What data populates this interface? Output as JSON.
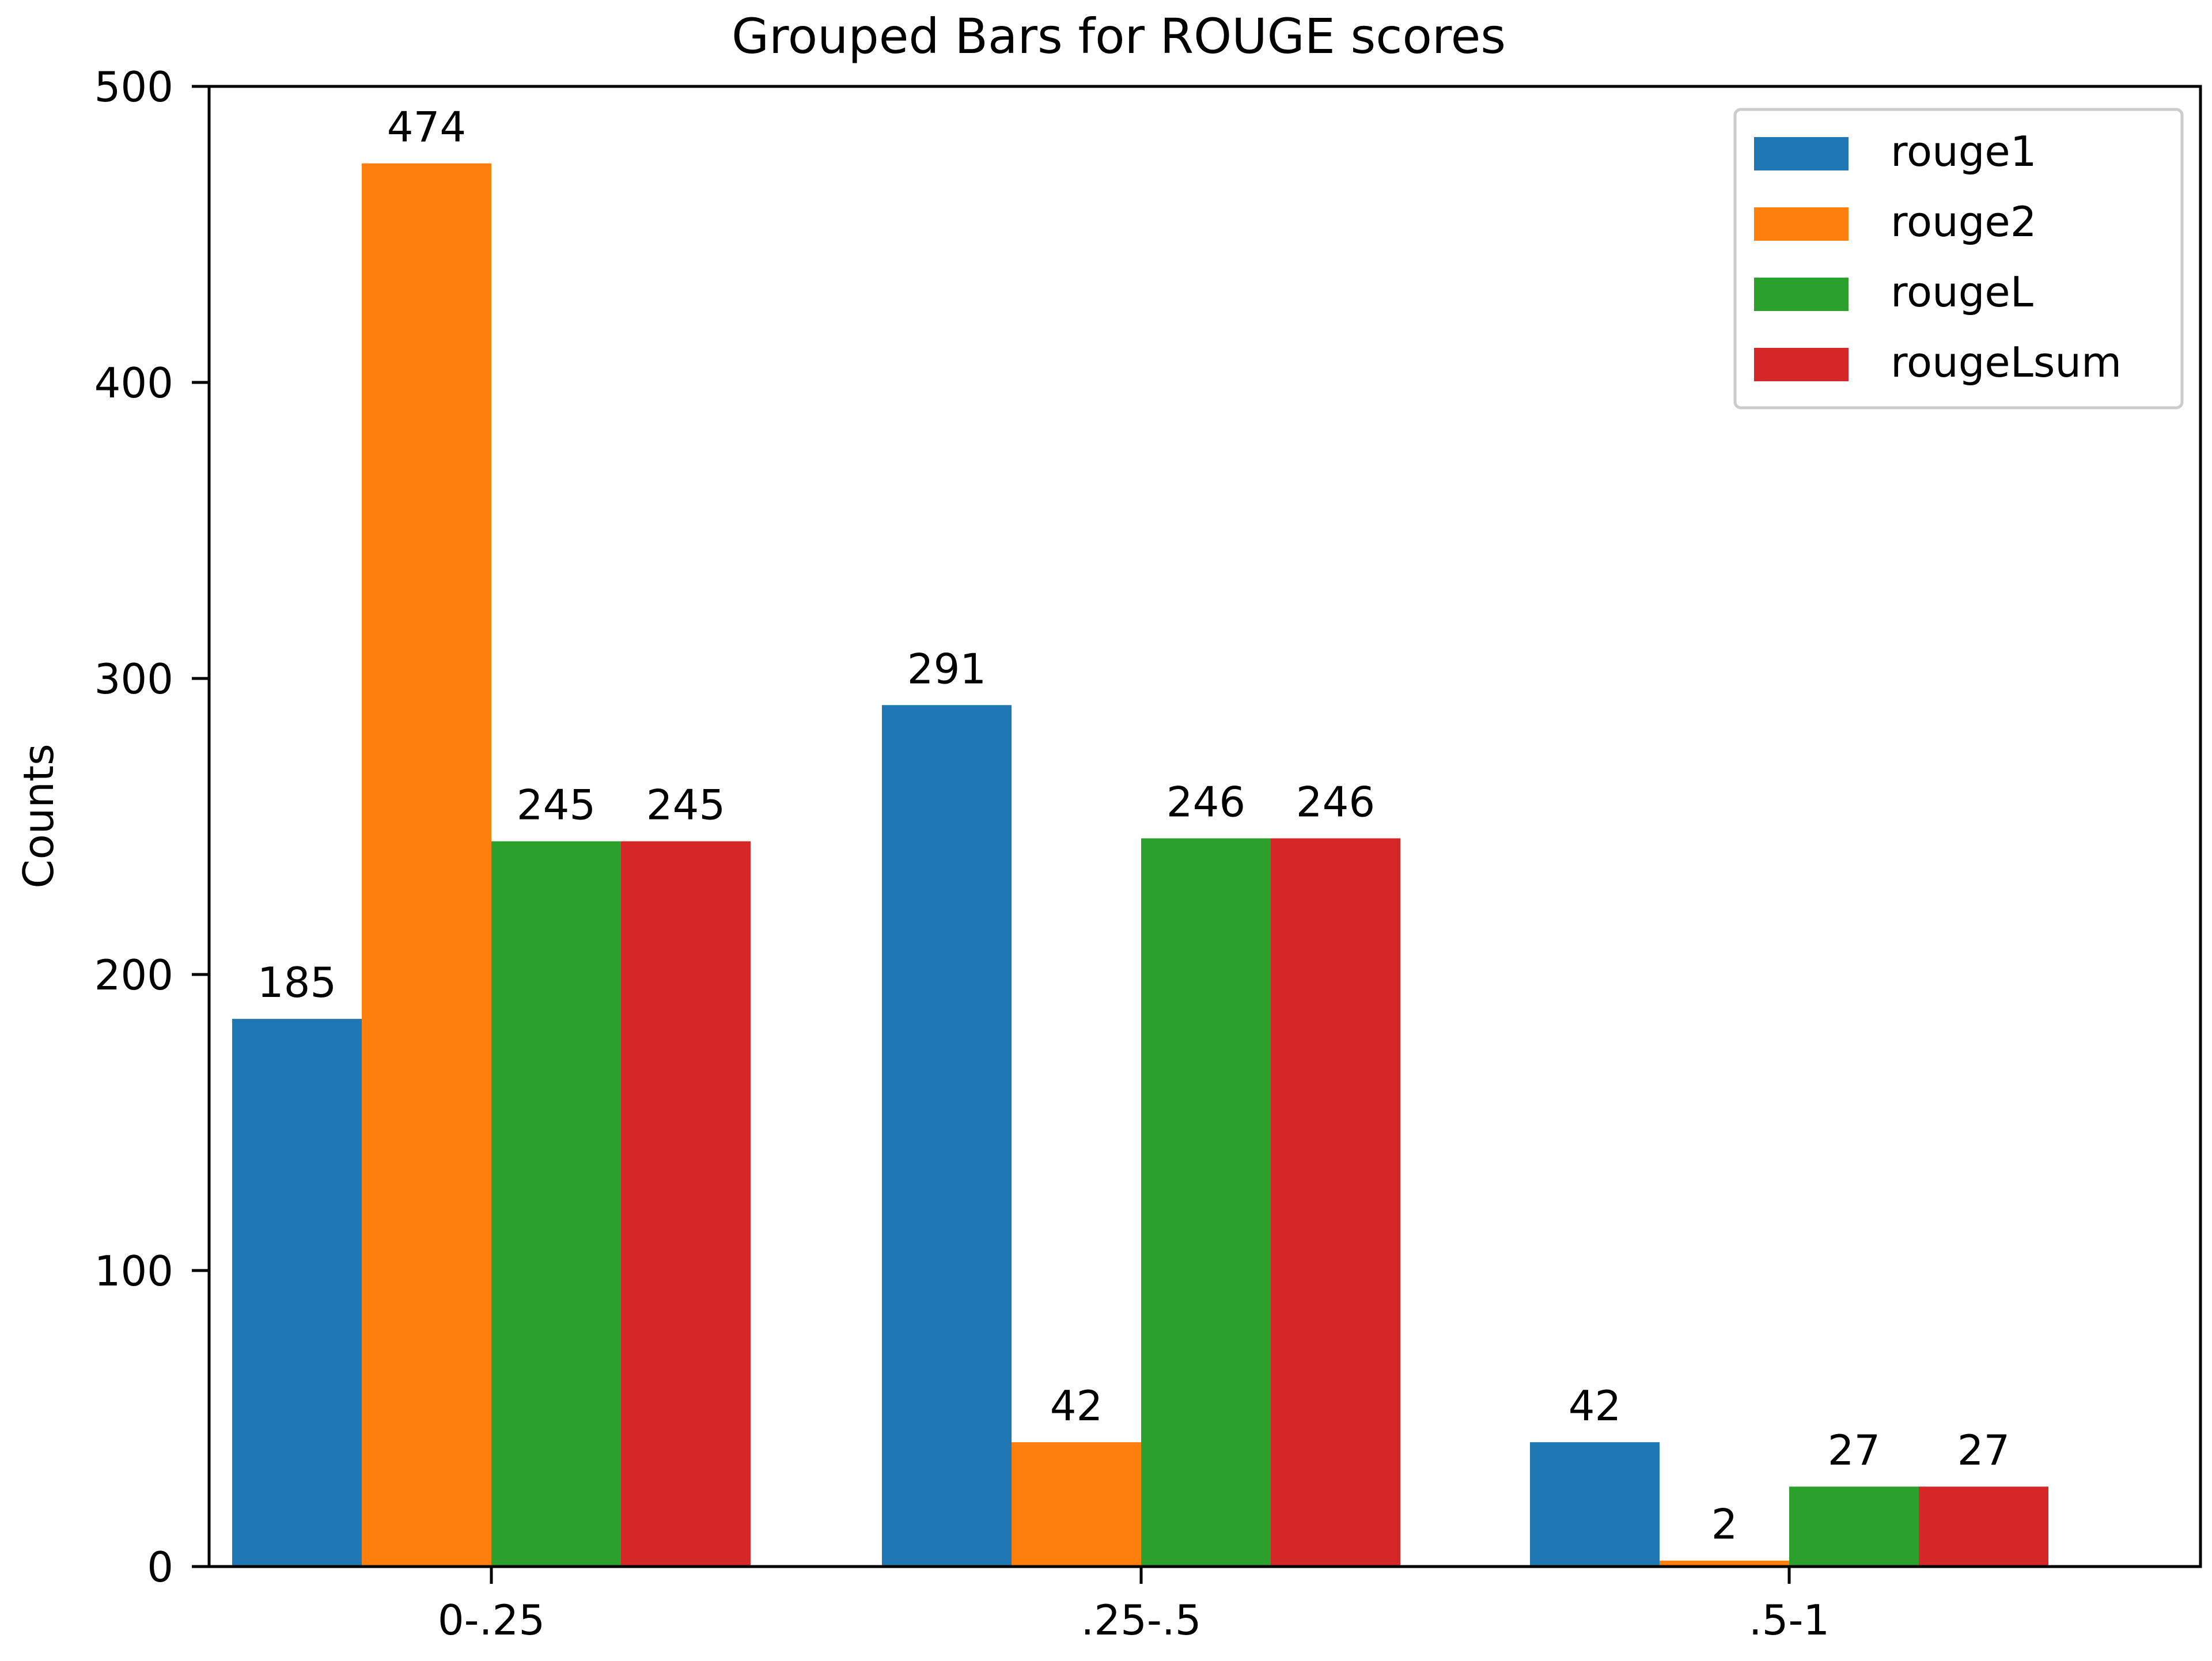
{
  "chart_data": {
    "type": "bar",
    "title": "Grouped Bars for ROUGE scores",
    "xlabel": "",
    "ylabel": "Counts",
    "ylim": [
      0,
      500
    ],
    "yticks": [
      0,
      100,
      200,
      300,
      400,
      500
    ],
    "categories": [
      "0-.25",
      ".25-.5",
      ".5-1"
    ],
    "series": [
      {
        "name": "rouge1",
        "color": "#1f77b4",
        "values": [
          185,
          291,
          42
        ]
      },
      {
        "name": "rouge2",
        "color": "#ff7f0e",
        "values": [
          474,
          42,
          2
        ]
      },
      {
        "name": "rougeL",
        "color": "#2ca02c",
        "values": [
          245,
          246,
          27
        ]
      },
      {
        "name": "rougeLsum",
        "color": "#d62728",
        "values": [
          245,
          246,
          27
        ]
      }
    ],
    "legend": "top-right",
    "grid": false,
    "data_labels": true
  }
}
